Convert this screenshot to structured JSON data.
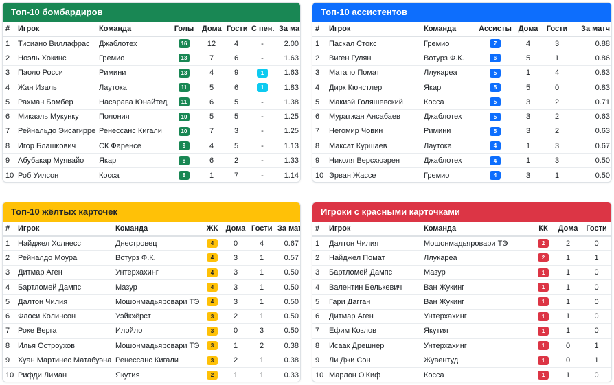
{
  "colors": {
    "green": "#198754",
    "blue": "#0d6efd",
    "cyan": "#0dcaf0",
    "yellow": "#ffc107",
    "red": "#dc3545"
  },
  "scorers": {
    "title": "Топ-10 бомбардиров",
    "headers": {
      "num": "#",
      "player": "Игрок",
      "team": "Команда",
      "goals": "Голы",
      "home": "Дома",
      "away": "Гости",
      "pens": "С пен.",
      "per_match": "За матч"
    },
    "rows": [
      {
        "n": "1",
        "player": "Тисиано Виллафрас",
        "team": "Джаблотех",
        "goals": "16",
        "home": "12",
        "away": "4",
        "pens": "-",
        "per": "2.00"
      },
      {
        "n": "2",
        "player": "Ноэль Хокинс",
        "team": "Гремио",
        "goals": "13",
        "home": "7",
        "away": "6",
        "pens": "-",
        "per": "1.63"
      },
      {
        "n": "3",
        "player": "Паоло Росси",
        "team": "Римини",
        "goals": "13",
        "home": "4",
        "away": "9",
        "pens": "1",
        "per": "1.63"
      },
      {
        "n": "4",
        "player": "Жан Изаль",
        "team": "Лаутока",
        "goals": "11",
        "home": "5",
        "away": "6",
        "pens": "1",
        "per": "1.83"
      },
      {
        "n": "5",
        "player": "Рахман Бомбер",
        "team": "Насарава Юнайтед",
        "goals": "11",
        "home": "6",
        "away": "5",
        "pens": "-",
        "per": "1.38"
      },
      {
        "n": "6",
        "player": "Микаэль Мукунку",
        "team": "Полония",
        "goals": "10",
        "home": "5",
        "away": "5",
        "pens": "-",
        "per": "1.25"
      },
      {
        "n": "7",
        "player": "Рейнальдо Эисагирре",
        "team": "Ренессанс Кигали",
        "goals": "10",
        "home": "7",
        "away": "3",
        "pens": "-",
        "per": "1.25"
      },
      {
        "n": "8",
        "player": "Игор Блашкович",
        "team": "СК Фаренсе",
        "goals": "9",
        "home": "4",
        "away": "5",
        "pens": "-",
        "per": "1.13"
      },
      {
        "n": "9",
        "player": "Абубакар Муявайо",
        "team": "Якар",
        "goals": "8",
        "home": "6",
        "away": "2",
        "pens": "-",
        "per": "1.33"
      },
      {
        "n": "10",
        "player": "Роб Уилсон",
        "team": "Косса",
        "goals": "8",
        "home": "1",
        "away": "7",
        "pens": "-",
        "per": "1.14"
      }
    ]
  },
  "assists": {
    "title": "Топ-10 ассистентов",
    "headers": {
      "num": "#",
      "player": "Игрок",
      "team": "Команда",
      "assists": "Ассисты",
      "home": "Дома",
      "away": "Гости",
      "per_match": "За матч"
    },
    "rows": [
      {
        "n": "1",
        "player": "Паскал Стокс",
        "team": "Гремио",
        "val": "7",
        "home": "4",
        "away": "3",
        "per": "0.88"
      },
      {
        "n": "2",
        "player": "Виген Гулян",
        "team": "Вотурз Ф.К.",
        "val": "6",
        "home": "5",
        "away": "1",
        "per": "0.86"
      },
      {
        "n": "3",
        "player": "Матапо Помат",
        "team": "Ллукареа",
        "val": "5",
        "home": "1",
        "away": "4",
        "per": "0.83"
      },
      {
        "n": "4",
        "player": "Дирк Кюнстлер",
        "team": "Якар",
        "val": "5",
        "home": "5",
        "away": "0",
        "per": "0.83"
      },
      {
        "n": "5",
        "player": "Макиэй Голяшевский",
        "team": "Косса",
        "val": "5",
        "home": "3",
        "away": "2",
        "per": "0.71"
      },
      {
        "n": "6",
        "player": "Муратжан Ансабаев",
        "team": "Джаблотех",
        "val": "5",
        "home": "3",
        "away": "2",
        "per": "0.63"
      },
      {
        "n": "7",
        "player": "Негомир Човин",
        "team": "Римини",
        "val": "5",
        "home": "3",
        "away": "2",
        "per": "0.63"
      },
      {
        "n": "8",
        "player": "Максат Куршаев",
        "team": "Лаутока",
        "val": "4",
        "home": "1",
        "away": "3",
        "per": "0.67"
      },
      {
        "n": "9",
        "player": "Николя Версхюэрен",
        "team": "Джаблотех",
        "val": "4",
        "home": "1",
        "away": "3",
        "per": "0.50"
      },
      {
        "n": "10",
        "player": "Эрван Жассе",
        "team": "Гремио",
        "val": "4",
        "home": "3",
        "away": "1",
        "per": "0.50"
      }
    ]
  },
  "yellow": {
    "title": "Топ-10 жёлтых карточек",
    "headers": {
      "num": "#",
      "player": "Игрок",
      "team": "Команда",
      "cards": "ЖК",
      "home": "Дома",
      "away": "Гости",
      "per_match": "За матч"
    },
    "rows": [
      {
        "n": "1",
        "player": "Найджел Холнесс",
        "team": "Днестровец",
        "val": "4",
        "home": "0",
        "away": "4",
        "per": "0.67"
      },
      {
        "n": "2",
        "player": "Рейналдо Моура",
        "team": "Вотурз Ф.К.",
        "val": "4",
        "home": "3",
        "away": "1",
        "per": "0.57"
      },
      {
        "n": "3",
        "player": "Дитмар Аген",
        "team": "Унтерхахинг",
        "val": "4",
        "home": "3",
        "away": "1",
        "per": "0.50"
      },
      {
        "n": "4",
        "player": "Бартломей Дампс",
        "team": "Мазур",
        "val": "4",
        "home": "3",
        "away": "1",
        "per": "0.50"
      },
      {
        "n": "5",
        "player": "Далтон Чилия",
        "team": "Мошонмадьяровари ТЭ",
        "val": "4",
        "home": "3",
        "away": "1",
        "per": "0.50"
      },
      {
        "n": "6",
        "player": "Флоси Колинсон",
        "team": "Уэйкхёрст",
        "val": "3",
        "home": "2",
        "away": "1",
        "per": "0.50"
      },
      {
        "n": "7",
        "player": "Роке Верга",
        "team": "Илойло",
        "val": "3",
        "home": "0",
        "away": "3",
        "per": "0.50"
      },
      {
        "n": "8",
        "player": "Илья Остроухов",
        "team": "Мошонмадьяровари ТЭ",
        "val": "3",
        "home": "1",
        "away": "2",
        "per": "0.38"
      },
      {
        "n": "9",
        "player": "Хуан Мартинес Матабуэна",
        "team": "Ренессанс Кигали",
        "val": "3",
        "home": "2",
        "away": "1",
        "per": "0.38"
      },
      {
        "n": "10",
        "player": "Рифди Лиман",
        "team": "Якутия",
        "val": "2",
        "home": "1",
        "away": "1",
        "per": "0.33"
      }
    ]
  },
  "red": {
    "title": "Игроки с красными карточками",
    "headers": {
      "num": "#",
      "player": "Игрок",
      "team": "Команда",
      "cards": "КК",
      "home": "Дома",
      "away": "Гости"
    },
    "rows": [
      {
        "n": "1",
        "player": "Далтон Чилия",
        "team": "Мошонмадьяровари ТЭ",
        "val": "2",
        "home": "2",
        "away": "0"
      },
      {
        "n": "2",
        "player": "Найджел Помат",
        "team": "Ллукареа",
        "val": "2",
        "home": "1",
        "away": "1"
      },
      {
        "n": "3",
        "player": "Бартломей Дампс",
        "team": "Мазур",
        "val": "1",
        "home": "1",
        "away": "0"
      },
      {
        "n": "4",
        "player": "Валентин Белькевич",
        "team": "Ван Жукинг",
        "val": "1",
        "home": "1",
        "away": "0"
      },
      {
        "n": "5",
        "player": "Гари Дагган",
        "team": "Ван Жукинг",
        "val": "1",
        "home": "1",
        "away": "0"
      },
      {
        "n": "6",
        "player": "Дитмар Аген",
        "team": "Унтерхахинг",
        "val": "1",
        "home": "1",
        "away": "0"
      },
      {
        "n": "7",
        "player": "Ефим Козлов",
        "team": "Якутия",
        "val": "1",
        "home": "1",
        "away": "0"
      },
      {
        "n": "8",
        "player": "Исаак Дрешнер",
        "team": "Унтерхахинг",
        "val": "1",
        "home": "0",
        "away": "1"
      },
      {
        "n": "9",
        "player": "Ли Джи Сон",
        "team": "Жувентуд",
        "val": "1",
        "home": "0",
        "away": "1"
      },
      {
        "n": "10",
        "player": "Марлон О'Киф",
        "team": "Косса",
        "val": "1",
        "home": "1",
        "away": "0"
      }
    ]
  }
}
